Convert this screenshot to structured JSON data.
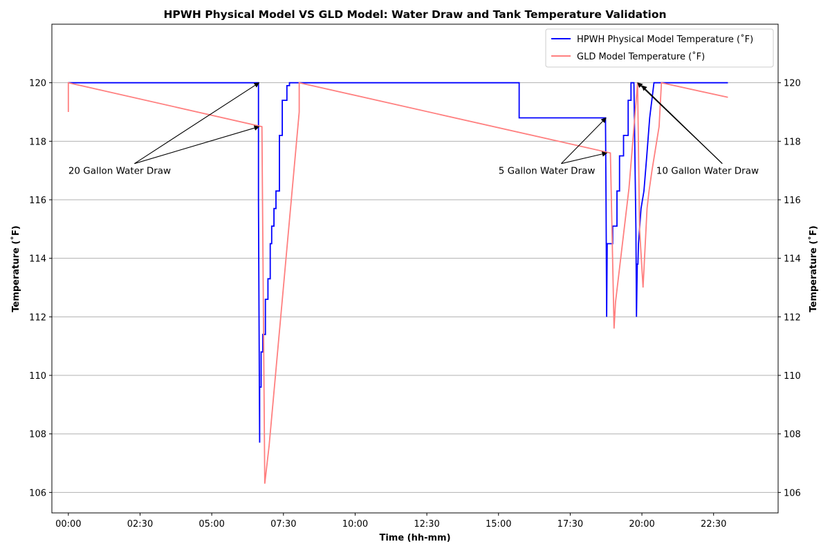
{
  "chart_data": {
    "type": "line",
    "title": "HPWH Physical Model VS GLD Model: Water Draw and Tank Temperature Validation",
    "xlabel": "Time (hh-mm)",
    "ylabel_left": "Temperature ($^\\circ$F)",
    "ylabel_right": "Temperature ($^\\circ$F)",
    "ylabel_display": "Temperature (˚F)",
    "xlim_hours": [
      -0.575,
      24.75
    ],
    "ylim": [
      105.3,
      122.0
    ],
    "x_ticks": [
      {
        "hour": 0,
        "label": "00:00"
      },
      {
        "hour": 2.5,
        "label": "02:30"
      },
      {
        "hour": 5,
        "label": "05:00"
      },
      {
        "hour": 7.5,
        "label": "07:30"
      },
      {
        "hour": 10,
        "label": "10:00"
      },
      {
        "hour": 12.5,
        "label": "12:30"
      },
      {
        "hour": 15,
        "label": "15:00"
      },
      {
        "hour": 17.5,
        "label": "17:30"
      },
      {
        "hour": 20,
        "label": "20:00"
      },
      {
        "hour": 22.5,
        "label": "22:30"
      }
    ],
    "y_ticks": [
      106,
      108,
      110,
      112,
      114,
      116,
      118,
      120
    ],
    "grid": "horizontal",
    "legend_position": "top-right",
    "series": [
      {
        "name": "HPWH Physical Model Temperature ($^\\circ$F)",
        "display_name": "HPWH Physical Model Temperature (˚F)",
        "color": "#0000ff",
        "x_hours": [
          0,
          6.63,
          6.63,
          6.65,
          6.67,
          6.67,
          6.72,
          6.72,
          6.78,
          6.78,
          6.87,
          6.87,
          6.96,
          6.96,
          7.04,
          7.04,
          7.09,
          7.09,
          7.17,
          7.17,
          7.24,
          7.24,
          7.36,
          7.36,
          7.42,
          7.42,
          7.46,
          7.46,
          7.54,
          7.54,
          7.62,
          7.62,
          7.71,
          7.71,
          7.92,
          7.92,
          15.72,
          15.72,
          18.73,
          18.75,
          18.77,
          18.79,
          18.81,
          18.81,
          18.98,
          18.98,
          19.13,
          19.13,
          19.22,
          19.22,
          19.36,
          19.36,
          19.52,
          19.52,
          19.62,
          19.62,
          19.72,
          19.72,
          19.79,
          19.81,
          19.84,
          19.86,
          19.88,
          19.88,
          19.97,
          19.97,
          20.07,
          20.07,
          20.17,
          20.17,
          20.27,
          20.27,
          20.42,
          20.42,
          23.0
        ],
        "y": [
          120.0,
          120.0,
          116.0,
          111.5,
          107.7,
          109.6,
          109.6,
          110.8,
          110.8,
          111.4,
          111.4,
          112.6,
          112.6,
          113.3,
          113.3,
          114.5,
          114.5,
          115.1,
          115.1,
          115.7,
          115.7,
          116.3,
          116.3,
          118.2,
          118.2,
          118.2,
          118.2,
          119.4,
          119.4,
          119.4,
          119.4,
          119.9,
          119.9,
          120.0,
          120.0,
          120.0,
          120.0,
          118.8,
          118.8,
          116.0,
          112.0,
          114.5,
          114.5,
          114.5,
          114.5,
          115.1,
          115.1,
          116.3,
          116.3,
          117.5,
          117.5,
          118.2,
          118.2,
          119.4,
          119.4,
          120.0,
          120.0,
          120.0,
          115.0,
          112.0,
          113.8,
          113.8,
          114.5,
          114.5,
          115.7,
          115.7,
          116.3,
          116.3,
          117.5,
          117.5,
          118.8,
          118.8,
          120.0,
          120.0,
          120.0
        ]
      },
      {
        "name": "GLD Model Temperature ($^\\circ$F)",
        "display_name": "GLD Model Temperature (˚F)",
        "color": "#ff7f7f",
        "x_hours": [
          0,
          0,
          6.75,
          6.85,
          7.0,
          8.05,
          8.05,
          18.9,
          19.03,
          19.08,
          19.55,
          19.85,
          19.92,
          20.04,
          20.18,
          20.25,
          20.35,
          20.6,
          20.68,
          23.0
        ],
        "y": [
          119.0,
          120.0,
          118.5,
          106.3,
          107.6,
          119.0,
          120.0,
          117.6,
          111.6,
          112.5,
          116.4,
          120.0,
          115.0,
          113.0,
          115.7,
          116.3,
          117.0,
          118.5,
          120.0,
          119.5
        ]
      }
    ],
    "annotations": [
      {
        "text": "20 Gallon Water Draw",
        "text_hour": 0.0,
        "text_temp": 117.0,
        "arrow_targets": [
          {
            "hour": 6.65,
            "temp": 120.0
          },
          {
            "hour": 6.65,
            "temp": 118.5
          }
        ]
      },
      {
        "text": "5 Gallon Water Draw",
        "text_hour": 15.0,
        "text_temp": 117.0,
        "arrow_targets": [
          {
            "hour": 18.75,
            "temp": 118.8
          },
          {
            "hour": 18.78,
            "temp": 117.6
          }
        ]
      },
      {
        "text": "10 Gallon Water Draw",
        "text_hour": 20.5,
        "text_temp": 117.0,
        "arrow_targets": [
          {
            "hour": 19.85,
            "temp": 120.0
          },
          {
            "hour": 20.0,
            "temp": 119.9
          }
        ]
      }
    ]
  }
}
